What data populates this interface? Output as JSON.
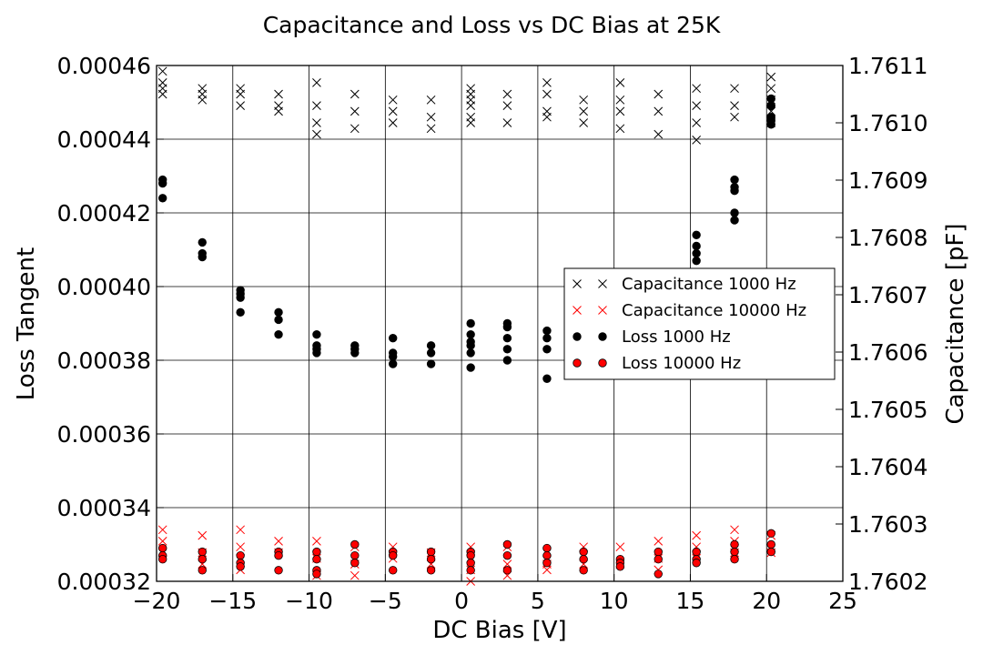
{
  "chart_data": {
    "type": "scatter",
    "title": "Capacitance and Loss vs DC Bias at 25K",
    "xlabel": "DC Bias [V]",
    "ylabel_left": "Loss Tangent",
    "ylabel_right": "Capacitance [pF]",
    "xlim": [
      -20,
      25
    ],
    "ylim_left": [
      0.00032,
      0.00046
    ],
    "ylim_right": [
      1.7602,
      1.7611
    ],
    "x_ticks": [
      "−20",
      "−15",
      "−10",
      "−5",
      "0",
      "5",
      "10",
      "15",
      "20",
      "25"
    ],
    "y_left_ticks": [
      "0.00032",
      "0.00034",
      "0.00036",
      "0.00038",
      "0.00040",
      "0.00042",
      "0.00044",
      "0.00046"
    ],
    "y_right_ticks": [
      "1.7602",
      "1.7603",
      "1.7604",
      "1.7605",
      "1.7606",
      "1.7607",
      "1.7608",
      "1.7609",
      "1.7610",
      "1.7611"
    ],
    "grid": true,
    "legend_position": "center-right",
    "series": [
      {
        "name": "Capacitance 1000 Hz",
        "marker": "x",
        "color": "#000000",
        "axis": "right",
        "points": [
          [
            -19.6,
            1.76107
          ],
          [
            -19.6,
            1.76106
          ],
          [
            -19.6,
            1.76105
          ],
          [
            -19.6,
            1.76109
          ],
          [
            -17.0,
            1.76106
          ],
          [
            -17.0,
            1.76105
          ],
          [
            -17.0,
            1.76104
          ],
          [
            -14.5,
            1.76106
          ],
          [
            -14.5,
            1.76105
          ],
          [
            -14.5,
            1.76103
          ],
          [
            -12.0,
            1.76105
          ],
          [
            -12.0,
            1.76103
          ],
          [
            -12.0,
            1.76102
          ],
          [
            -9.5,
            1.76107
          ],
          [
            -9.5,
            1.76103
          ],
          [
            -9.5,
            1.761
          ],
          [
            -9.5,
            1.76098
          ],
          [
            -7.0,
            1.76105
          ],
          [
            -7.0,
            1.76102
          ],
          [
            -7.0,
            1.76099
          ],
          [
            -4.5,
            1.76104
          ],
          [
            -4.5,
            1.76102
          ],
          [
            -4.5,
            1.761
          ],
          [
            -2.0,
            1.76104
          ],
          [
            -2.0,
            1.76101
          ],
          [
            -2.0,
            1.76099
          ],
          [
            0.6,
            1.76106
          ],
          [
            0.6,
            1.76105
          ],
          [
            0.6,
            1.76104
          ],
          [
            0.6,
            1.76103
          ],
          [
            0.6,
            1.76101
          ],
          [
            0.6,
            1.761
          ],
          [
            3.0,
            1.76105
          ],
          [
            3.0,
            1.76103
          ],
          [
            3.0,
            1.761
          ],
          [
            5.6,
            1.76107
          ],
          [
            5.6,
            1.76105
          ],
          [
            5.6,
            1.76102
          ],
          [
            5.6,
            1.76101
          ],
          [
            8.0,
            1.76104
          ],
          [
            8.0,
            1.76102
          ],
          [
            8.0,
            1.761
          ],
          [
            10.4,
            1.76107
          ],
          [
            10.4,
            1.76104
          ],
          [
            10.4,
            1.76102
          ],
          [
            10.4,
            1.76099
          ],
          [
            12.9,
            1.76105
          ],
          [
            12.9,
            1.76102
          ],
          [
            12.9,
            1.76098
          ],
          [
            15.4,
            1.76106
          ],
          [
            15.4,
            1.76103
          ],
          [
            15.4,
            1.761
          ],
          [
            15.4,
            1.76097
          ],
          [
            17.9,
            1.76106
          ],
          [
            17.9,
            1.76103
          ],
          [
            17.9,
            1.76101
          ],
          [
            20.3,
            1.76108
          ],
          [
            20.3,
            1.76106
          ],
          [
            20.3,
            1.76104
          ],
          [
            20.3,
            1.76102
          ],
          [
            20.3,
            1.761
          ]
        ]
      },
      {
        "name": "Capacitance 10000 Hz",
        "marker": "x",
        "color": "#ff0000",
        "axis": "right",
        "points": [
          [
            -19.6,
            1.76029
          ],
          [
            -19.6,
            1.76027
          ],
          [
            -19.6,
            1.76025
          ],
          [
            -17.0,
            1.76028
          ],
          [
            -17.0,
            1.76025
          ],
          [
            -17.0,
            1.76023
          ],
          [
            -14.5,
            1.76029
          ],
          [
            -14.5,
            1.76026
          ],
          [
            -14.5,
            1.76024
          ],
          [
            -14.5,
            1.76022
          ],
          [
            -12.0,
            1.76027
          ],
          [
            -12.0,
            1.76025
          ],
          [
            -9.5,
            1.76027
          ],
          [
            -9.5,
            1.76024
          ],
          [
            -9.5,
            1.76021
          ],
          [
            -7.0,
            1.76026
          ],
          [
            -7.0,
            1.76023
          ],
          [
            -7.0,
            1.76021
          ],
          [
            -4.5,
            1.76026
          ],
          [
            -4.5,
            1.76024
          ],
          [
            -2.0,
            1.76025
          ],
          [
            -2.0,
            1.76023
          ],
          [
            0.6,
            1.76026
          ],
          [
            0.6,
            1.76024
          ],
          [
            0.6,
            1.76022
          ],
          [
            0.6,
            1.7602
          ],
          [
            3.0,
            1.76026
          ],
          [
            3.0,
            1.76023
          ],
          [
            3.0,
            1.76021
          ],
          [
            5.6,
            1.76025
          ],
          [
            5.6,
            1.76023
          ],
          [
            5.6,
            1.76022
          ],
          [
            8.0,
            1.76026
          ],
          [
            8.0,
            1.76023
          ],
          [
            10.4,
            1.76026
          ],
          [
            10.4,
            1.76023
          ],
          [
            12.9,
            1.76027
          ],
          [
            12.9,
            1.76024
          ],
          [
            12.9,
            1.76022
          ],
          [
            15.4,
            1.76028
          ],
          [
            15.4,
            1.76026
          ],
          [
            15.4,
            1.76024
          ],
          [
            17.9,
            1.76029
          ],
          [
            17.9,
            1.76027
          ],
          [
            17.9,
            1.76025
          ],
          [
            20.3,
            1.76028
          ],
          [
            20.3,
            1.76025
          ]
        ]
      },
      {
        "name": "Loss 1000 Hz",
        "marker": "o",
        "color": "#000000",
        "axis": "left",
        "points": [
          [
            -19.6,
            0.000429
          ],
          [
            -19.6,
            0.000428
          ],
          [
            -19.6,
            0.000424
          ],
          [
            -17.0,
            0.000412
          ],
          [
            -17.0,
            0.000409
          ],
          [
            -17.0,
            0.000408
          ],
          [
            -14.5,
            0.000399
          ],
          [
            -14.5,
            0.000398
          ],
          [
            -14.5,
            0.000397
          ],
          [
            -14.5,
            0.000393
          ],
          [
            -12.0,
            0.000393
          ],
          [
            -12.0,
            0.000391
          ],
          [
            -12.0,
            0.000387
          ],
          [
            -9.5,
            0.000387
          ],
          [
            -9.5,
            0.000384
          ],
          [
            -9.5,
            0.000383
          ],
          [
            -9.5,
            0.000382
          ],
          [
            -7.0,
            0.000384
          ],
          [
            -7.0,
            0.000383
          ],
          [
            -7.0,
            0.000382
          ],
          [
            -4.5,
            0.000386
          ],
          [
            -4.5,
            0.000382
          ],
          [
            -4.5,
            0.000381
          ],
          [
            -4.5,
            0.000379
          ],
          [
            -2.0,
            0.000384
          ],
          [
            -2.0,
            0.000382
          ],
          [
            -2.0,
            0.000379
          ],
          [
            0.6,
            0.00039
          ],
          [
            0.6,
            0.000387
          ],
          [
            0.6,
            0.000385
          ],
          [
            0.6,
            0.000384
          ],
          [
            0.6,
            0.000382
          ],
          [
            0.6,
            0.000378
          ],
          [
            3.0,
            0.00039
          ],
          [
            3.0,
            0.000389
          ],
          [
            3.0,
            0.000386
          ],
          [
            3.0,
            0.000383
          ],
          [
            3.0,
            0.00038
          ],
          [
            5.6,
            0.000388
          ],
          [
            5.6,
            0.000386
          ],
          [
            5.6,
            0.000383
          ],
          [
            5.6,
            0.000375
          ],
          [
            15.4,
            0.000414
          ],
          [
            15.4,
            0.000411
          ],
          [
            15.4,
            0.000409
          ],
          [
            15.4,
            0.000407
          ],
          [
            17.9,
            0.000429
          ],
          [
            17.9,
            0.000427
          ],
          [
            17.9,
            0.000426
          ],
          [
            17.9,
            0.00042
          ],
          [
            17.9,
            0.000418
          ],
          [
            20.3,
            0.000451
          ],
          [
            20.3,
            0.000449
          ],
          [
            20.3,
            0.000446
          ],
          [
            20.3,
            0.000445
          ],
          [
            20.3,
            0.000444
          ]
        ]
      },
      {
        "name": "Loss 10000 Hz",
        "marker": "o",
        "color": "#ff0000",
        "axis": "left",
        "points": [
          [
            -19.6,
            0.000329
          ],
          [
            -19.6,
            0.000327
          ],
          [
            -19.6,
            0.000326
          ],
          [
            -17.0,
            0.000328
          ],
          [
            -17.0,
            0.000326
          ],
          [
            -17.0,
            0.000323
          ],
          [
            -14.5,
            0.000327
          ],
          [
            -14.5,
            0.000325
          ],
          [
            -14.5,
            0.000324
          ],
          [
            -12.0,
            0.000328
          ],
          [
            -12.0,
            0.000327
          ],
          [
            -12.0,
            0.000323
          ],
          [
            -9.5,
            0.000328
          ],
          [
            -9.5,
            0.000326
          ],
          [
            -9.5,
            0.000323
          ],
          [
            -9.5,
            0.000322
          ],
          [
            -7.0,
            0.00033
          ],
          [
            -7.0,
            0.000327
          ],
          [
            -7.0,
            0.000325
          ],
          [
            -4.5,
            0.000328
          ],
          [
            -4.5,
            0.000327
          ],
          [
            -4.5,
            0.000323
          ],
          [
            -2.0,
            0.000328
          ],
          [
            -2.0,
            0.000326
          ],
          [
            -2.0,
            0.000323
          ],
          [
            0.6,
            0.000328
          ],
          [
            0.6,
            0.000327
          ],
          [
            0.6,
            0.000325
          ],
          [
            0.6,
            0.000323
          ],
          [
            3.0,
            0.00033
          ],
          [
            3.0,
            0.000327
          ],
          [
            3.0,
            0.000323
          ],
          [
            5.6,
            0.000329
          ],
          [
            5.6,
            0.000327
          ],
          [
            5.6,
            0.000325
          ],
          [
            8.0,
            0.000328
          ],
          [
            8.0,
            0.000326
          ],
          [
            8.0,
            0.000323
          ],
          [
            10.4,
            0.000326
          ],
          [
            10.4,
            0.000325
          ],
          [
            10.4,
            0.000324
          ],
          [
            12.9,
            0.000328
          ],
          [
            12.9,
            0.000326
          ],
          [
            12.9,
            0.000322
          ],
          [
            15.4,
            0.000328
          ],
          [
            15.4,
            0.000326
          ],
          [
            15.4,
            0.000325
          ],
          [
            17.9,
            0.00033
          ],
          [
            17.9,
            0.000328
          ],
          [
            17.9,
            0.000326
          ],
          [
            20.3,
            0.000333
          ],
          [
            20.3,
            0.00033
          ],
          [
            20.3,
            0.000328
          ]
        ]
      }
    ]
  }
}
